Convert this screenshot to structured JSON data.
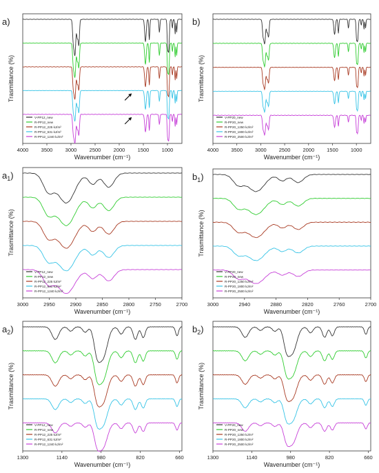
{
  "palette": {
    "black": "#333333",
    "green": "#2fcc2f",
    "brown": "#a83a22",
    "cyan": "#35c3e6",
    "magenta": "#c63fd8"
  },
  "legend_sets": {
    "pp12": [
      "V-PP12_new",
      "R-PP12_new",
      "R-PP12_225 kJ/m²",
      "R-PP12_631 kJ/m²",
      "R-PP12_1240 kJ/m²"
    ],
    "pp20": [
      "V-PP20_new",
      "R-PP20_new",
      "R-PP20_1250 kJ/m²",
      "R-PP20_1800 kJ/m²",
      "R-PP20_2500 kJ/m²"
    ]
  },
  "chart_data": [
    {
      "id": "a",
      "type": "line",
      "panel_label": "a)",
      "sub": "",
      "xlabel": "Wavenumber (cm⁻¹)",
      "ylabel": "Trasmittance (%)",
      "xlim": [
        4000,
        700
      ],
      "x_ticks": [
        "4000",
        "3500",
        "3000",
        "2500",
        "2000",
        "1500",
        "1000"
      ],
      "legend_set": "pp12",
      "legend_placement": "bottom-left",
      "grid": false,
      "annotations": [
        "arrow near 1740 cm⁻¹ on R-PP12_631 kJ/m²",
        "arrow near 1740 cm⁻¹ on R-PP12_1240 kJ/m²"
      ]
    },
    {
      "id": "b",
      "type": "line",
      "panel_label": "b)",
      "sub": "",
      "xlabel": "Wavenumber (cm⁻¹)",
      "ylabel": "Trasmittance (%)",
      "xlim": [
        4000,
        700
      ],
      "x_ticks": [
        "4000",
        "3500",
        "3000",
        "2500",
        "2000",
        "1500",
        "1000"
      ],
      "legend_set": "pp20",
      "legend_placement": "bottom-left",
      "grid": false
    },
    {
      "id": "a1",
      "type": "line",
      "panel_label": "a",
      "sub": "1",
      "xlabel": "Wavenumber (cm⁻¹)",
      "ylabel": "Trasmittance (%)",
      "xlim": [
        3000,
        2700
      ],
      "x_ticks": [
        "3000",
        "2950",
        "2900",
        "2850",
        "2800",
        "2750",
        "2700"
      ],
      "legend_set": "pp12",
      "legend_placement": "bottom-left",
      "grid": false
    },
    {
      "id": "b1",
      "type": "line",
      "panel_label": "b",
      "sub": "1",
      "xlabel": "Wavenumber (cm⁻¹)",
      "ylabel": "Trasmittance (%)",
      "xlim": [
        3000,
        2700
      ],
      "x_ticks": [
        "3000",
        "2940",
        "2880",
        "2820",
        "2760",
        "2700"
      ],
      "legend_set": "pp20",
      "legend_placement": "bottom-left",
      "grid": false
    },
    {
      "id": "a2",
      "type": "line",
      "panel_label": "a",
      "sub": "2",
      "xlabel": "Wavenumber (cm⁻¹)",
      "ylabel": "Trasmittance (%)",
      "xlim": [
        1300,
        650
      ],
      "x_ticks": [
        "1300",
        "1140",
        "980",
        "820",
        "660"
      ],
      "legend_set": "pp12",
      "legend_placement": "bottom-left",
      "grid": false
    },
    {
      "id": "b2",
      "type": "line",
      "panel_label": "b",
      "sub": "2",
      "xlabel": "Wavenumber (cm⁻¹)",
      "ylabel": "Trasmittance (%)",
      "xlim": [
        1300,
        650
      ],
      "x_ticks": [
        "1300",
        "1140",
        "980",
        "820",
        "660"
      ],
      "legend_set": "pp20",
      "legend_placement": "bottom-left",
      "grid": false
    }
  ]
}
